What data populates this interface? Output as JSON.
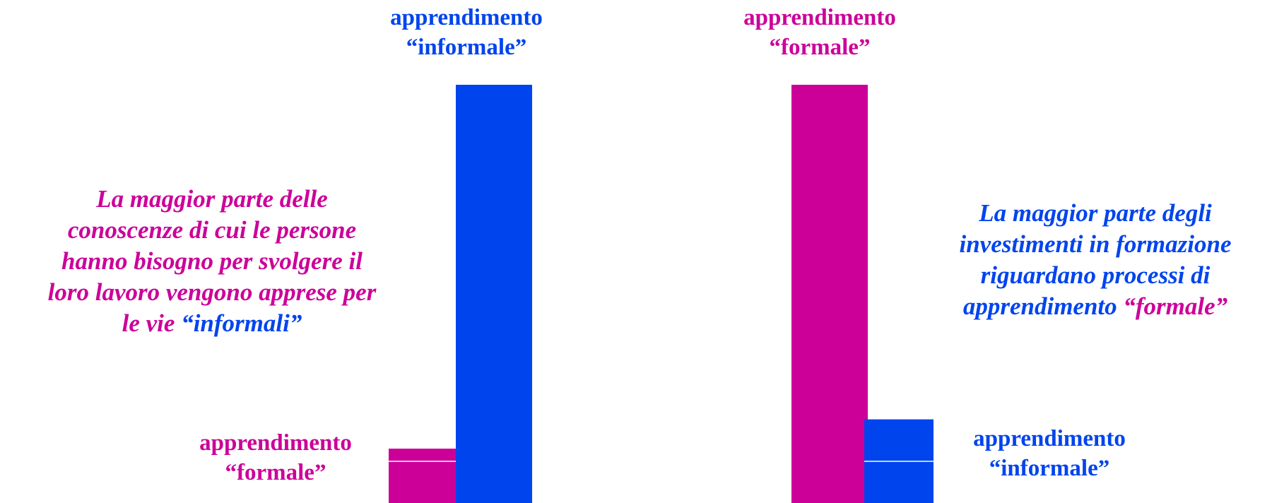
{
  "colors": {
    "formale": "#cc0099",
    "informale": "#0044ee"
  },
  "chart_data": [
    {
      "type": "bar",
      "categories": [
        "formale",
        "informale"
      ],
      "values": [
        13,
        100
      ],
      "xlabel": "",
      "ylabel": "",
      "ylim": [
        0,
        100
      ],
      "grid": false,
      "legend": "none"
    },
    {
      "type": "bar",
      "categories": [
        "formale",
        "informale"
      ],
      "values": [
        100,
        20
      ],
      "xlabel": "",
      "ylabel": "",
      "ylim": [
        0,
        100
      ],
      "grid": false,
      "legend": "none"
    }
  ],
  "left": {
    "bar_top_label": [
      "apprendimento",
      "“informale”"
    ],
    "bar_side_label": [
      "apprendimento",
      "“formale”"
    ],
    "note": {
      "lines": [
        "La maggior parte delle",
        "conoscenze di cui le persone",
        "hanno bisogno per svolgere il",
        "loro lavoro vengono apprese per"
      ],
      "last_prefix": "le vie ",
      "last_emph": "“informali”"
    }
  },
  "right": {
    "bar_top_label": [
      "apprendimento",
      "“formale”"
    ],
    "bar_side_label": [
      "apprendimento",
      "“informale”"
    ],
    "note": {
      "lines": [
        "La maggior parte degli",
        "investimenti in formazione",
        "riguardano processi di"
      ],
      "last_prefix": "apprendimento ",
      "last_emph": "“formale”"
    }
  }
}
